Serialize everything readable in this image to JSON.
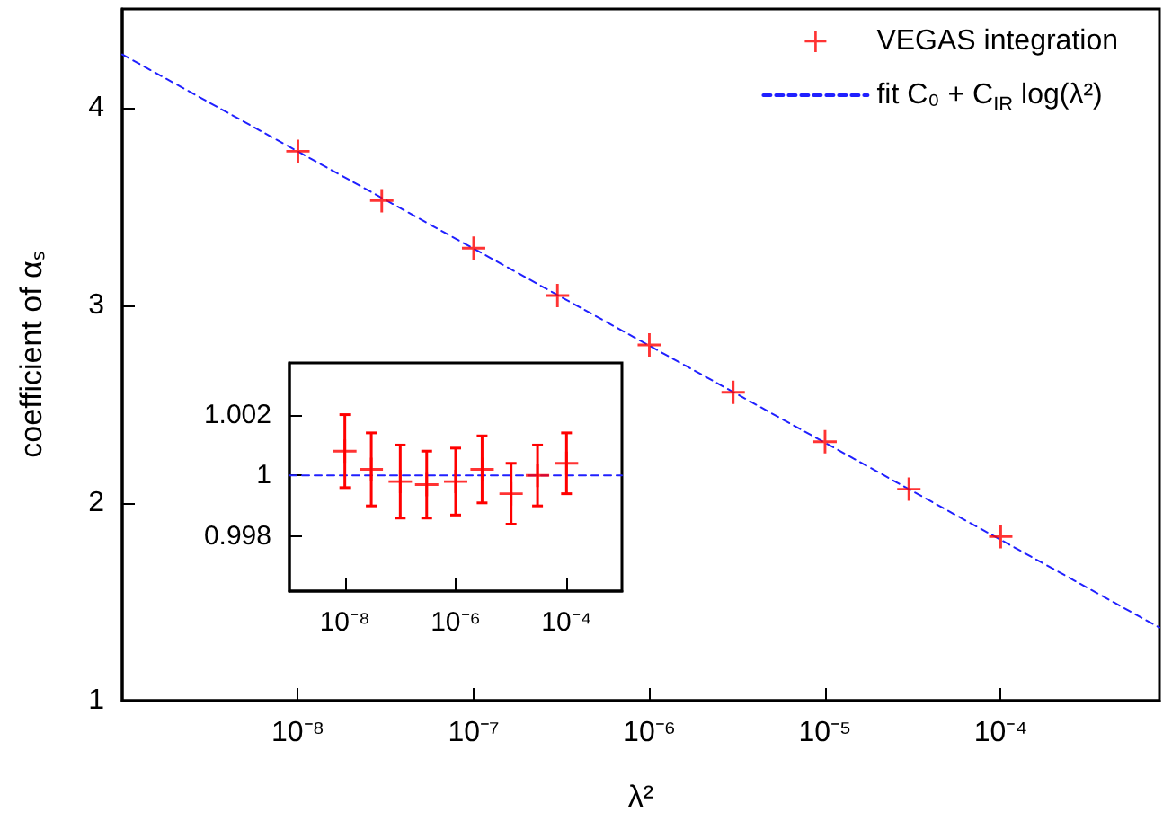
{
  "chart_data": [
    {
      "type": "scatter",
      "xlabel": "λ²",
      "ylabel": "coefficient of αₛ",
      "log": "x",
      "grid": false,
      "legend": "top right",
      "xlim": [
        1e-09,
        0.0008
      ],
      "ylim": [
        1,
        4.5
      ],
      "xticks": [
        {
          "value": 1e-08,
          "label": "10⁻⁸"
        },
        {
          "value": 1e-07,
          "label": "10⁻⁷"
        },
        {
          "value": 1e-06,
          "label": "10⁻⁶"
        },
        {
          "value": 1e-05,
          "label": "10⁻⁵"
        },
        {
          "value": 0.0001,
          "label": "10⁻⁴"
        }
      ],
      "yticks": [
        1,
        2,
        3,
        4
      ],
      "series": [
        {
          "name": "VEGAS integration",
          "marker": "cross",
          "color": "#ff0000",
          "x": [
            1e-08,
            3e-08,
            1e-07,
            3e-07,
            1e-06,
            3e-06,
            1e-05,
            3e-05,
            0.0001
          ],
          "values": [
            3.78,
            3.53,
            3.29,
            3.05,
            2.8,
            2.56,
            2.31,
            2.07,
            1.83
          ]
        },
        {
          "name": "fit C₀ + C$_{IR}$ log(λ²)",
          "type": "line",
          "marker": "none",
          "line_style": "dashed",
          "color": "#2020ff",
          "x": [
            1e-09,
            0.0008
          ],
          "values": [
            4.27,
            1.37
          ]
        }
      ]
    },
    {
      "type": "scatter",
      "log": "x",
      "grid": false,
      "legend": false,
      "xlim": [
        1e-09,
        0.001
      ],
      "ylim": [
        0.9962,
        1.0037
      ],
      "xticks": [
        {
          "value": 1e-08,
          "label": "10⁻⁸"
        },
        {
          "value": 1e-06,
          "label": "10⁻⁶"
        },
        {
          "value": 0.0001,
          "label": "10⁻⁴"
        }
      ],
      "yticks": [
        0.998,
        1,
        1.002
      ],
      "series": [
        {
          "marker": "cross",
          "color": "#ff0000",
          "x": [
            1e-08,
            3e-08,
            1e-07,
            3e-07,
            1e-06,
            3e-06,
            1e-05,
            3e-05,
            0.0001
          ],
          "values": [
            1.0008,
            1.0002,
            0.9998,
            0.9997,
            0.9998,
            1.0002,
            0.9994,
            1.0,
            1.0004
          ],
          "errors": [
            0.0012,
            0.0012,
            0.0012,
            0.0011,
            0.0011,
            0.0011,
            0.001,
            0.001,
            0.001
          ]
        },
        {
          "type": "line",
          "marker": "none",
          "line_style": "dashed",
          "color": "#2020ff",
          "x": [
            1e-09,
            0.001
          ],
          "values": [
            1,
            1
          ]
        }
      ]
    }
  ]
}
